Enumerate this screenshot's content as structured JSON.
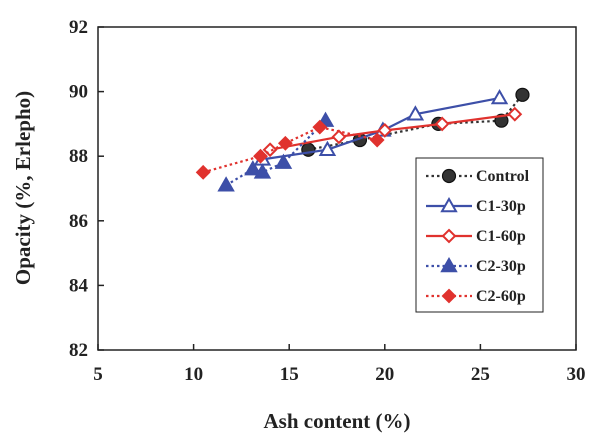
{
  "chart_data": {
    "type": "line",
    "xlabel": "Ash content (%)",
    "ylabel": "Opacity (%, Erlepho)",
    "xlim": [
      5,
      30
    ],
    "ylim": [
      82,
      92
    ],
    "x_ticks": [
      5,
      10,
      15,
      20,
      25,
      30
    ],
    "y_ticks": [
      82,
      84,
      86,
      88,
      90,
      92
    ],
    "grid": false,
    "legend_position": "right",
    "series": [
      {
        "name": "Control",
        "color": "#333333",
        "line": "dotted",
        "marker": "circle-filled",
        "points": [
          [
            16.0,
            88.2
          ],
          [
            18.7,
            88.5
          ],
          [
            22.8,
            89.0
          ],
          [
            26.1,
            89.1
          ],
          [
            27.2,
            89.9
          ]
        ]
      },
      {
        "name": "C1-30p",
        "color": "#3d4fa8",
        "line": "solid",
        "marker": "triangle-open",
        "points": [
          [
            13.6,
            87.9
          ],
          [
            17.0,
            88.2
          ],
          [
            19.9,
            88.8
          ],
          [
            21.6,
            89.3
          ],
          [
            26.0,
            89.8
          ]
        ]
      },
      {
        "name": "C1-60p",
        "color": "#e0322e",
        "line": "solid",
        "marker": "diamond-open",
        "points": [
          [
            14.0,
            88.2
          ],
          [
            17.6,
            88.6
          ],
          [
            20.0,
            88.8
          ],
          [
            23.0,
            89.0
          ],
          [
            26.8,
            89.3
          ]
        ]
      },
      {
        "name": "C2-30p",
        "color": "#3d4fa8",
        "line": "dotted",
        "marker": "triangle-filled",
        "points": [
          [
            11.7,
            87.1
          ],
          [
            13.1,
            87.6
          ],
          [
            13.6,
            87.5
          ],
          [
            14.7,
            87.8
          ],
          [
            16.9,
            89.1
          ]
        ]
      },
      {
        "name": "C2-60p",
        "color": "#e0322e",
        "line": "dotted",
        "marker": "diamond-filled",
        "points": [
          [
            10.5,
            87.5
          ],
          [
            13.5,
            88.0
          ],
          [
            14.8,
            88.4
          ],
          [
            16.6,
            88.9
          ],
          [
            19.6,
            88.5
          ]
        ]
      }
    ]
  }
}
